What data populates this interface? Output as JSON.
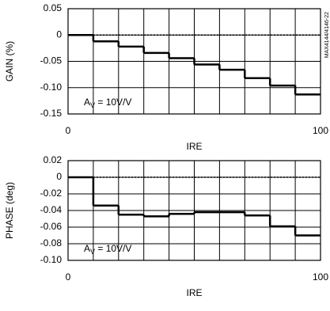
{
  "chart_data": [
    {
      "type": "step",
      "ylabel": "GAIN (%)",
      "xlabel": "IRE",
      "x": [
        0,
        10,
        20,
        30,
        40,
        50,
        60,
        70,
        80,
        90
      ],
      "values": [
        0,
        -0.012,
        -0.022,
        -0.034,
        -0.044,
        -0.056,
        -0.066,
        -0.082,
        -0.096,
        -0.113
      ],
      "color": "#000000",
      "xlim": [
        0,
        100
      ],
      "xticks": [
        0,
        100
      ],
      "xgrid": [
        10,
        20,
        30,
        40,
        50,
        60,
        70,
        80,
        90
      ],
      "ylim": [
        -0.15,
        0.05
      ],
      "yticks": [
        0.05,
        0,
        -0.05,
        {
          "value": -0.1,
          "label": "-0.10"
        },
        -0.15
      ],
      "reference_line": 0,
      "annotation": {
        "main": "A",
        "subscript": "V",
        "suffix": " = 10V/V"
      },
      "side_note": "MAX4144/4146-22"
    },
    {
      "type": "step",
      "ylabel": "PHASE (deg)",
      "xlabel": "IRE",
      "x": [
        0,
        10,
        20,
        30,
        40,
        50,
        60,
        70,
        80,
        90
      ],
      "values": [
        0,
        -0.034,
        -0.045,
        -0.047,
        -0.044,
        -0.042,
        -0.042,
        -0.046,
        -0.059,
        -0.07
      ],
      "color": "#000000",
      "xlim": [
        0,
        100
      ],
      "xticks": [
        0,
        100
      ],
      "xgrid": [
        10,
        20,
        30,
        40,
        50,
        60,
        70,
        80,
        90
      ],
      "ylim": [
        -0.1,
        0.02
      ],
      "yticks": [
        0.02,
        0,
        -0.02,
        -0.04,
        -0.06,
        -0.08,
        {
          "value": -0.1,
          "label": "-0.10"
        }
      ],
      "reference_line": 0,
      "annotation": {
        "main": "A",
        "subscript": "V",
        "suffix": " = 10V/V"
      }
    }
  ]
}
